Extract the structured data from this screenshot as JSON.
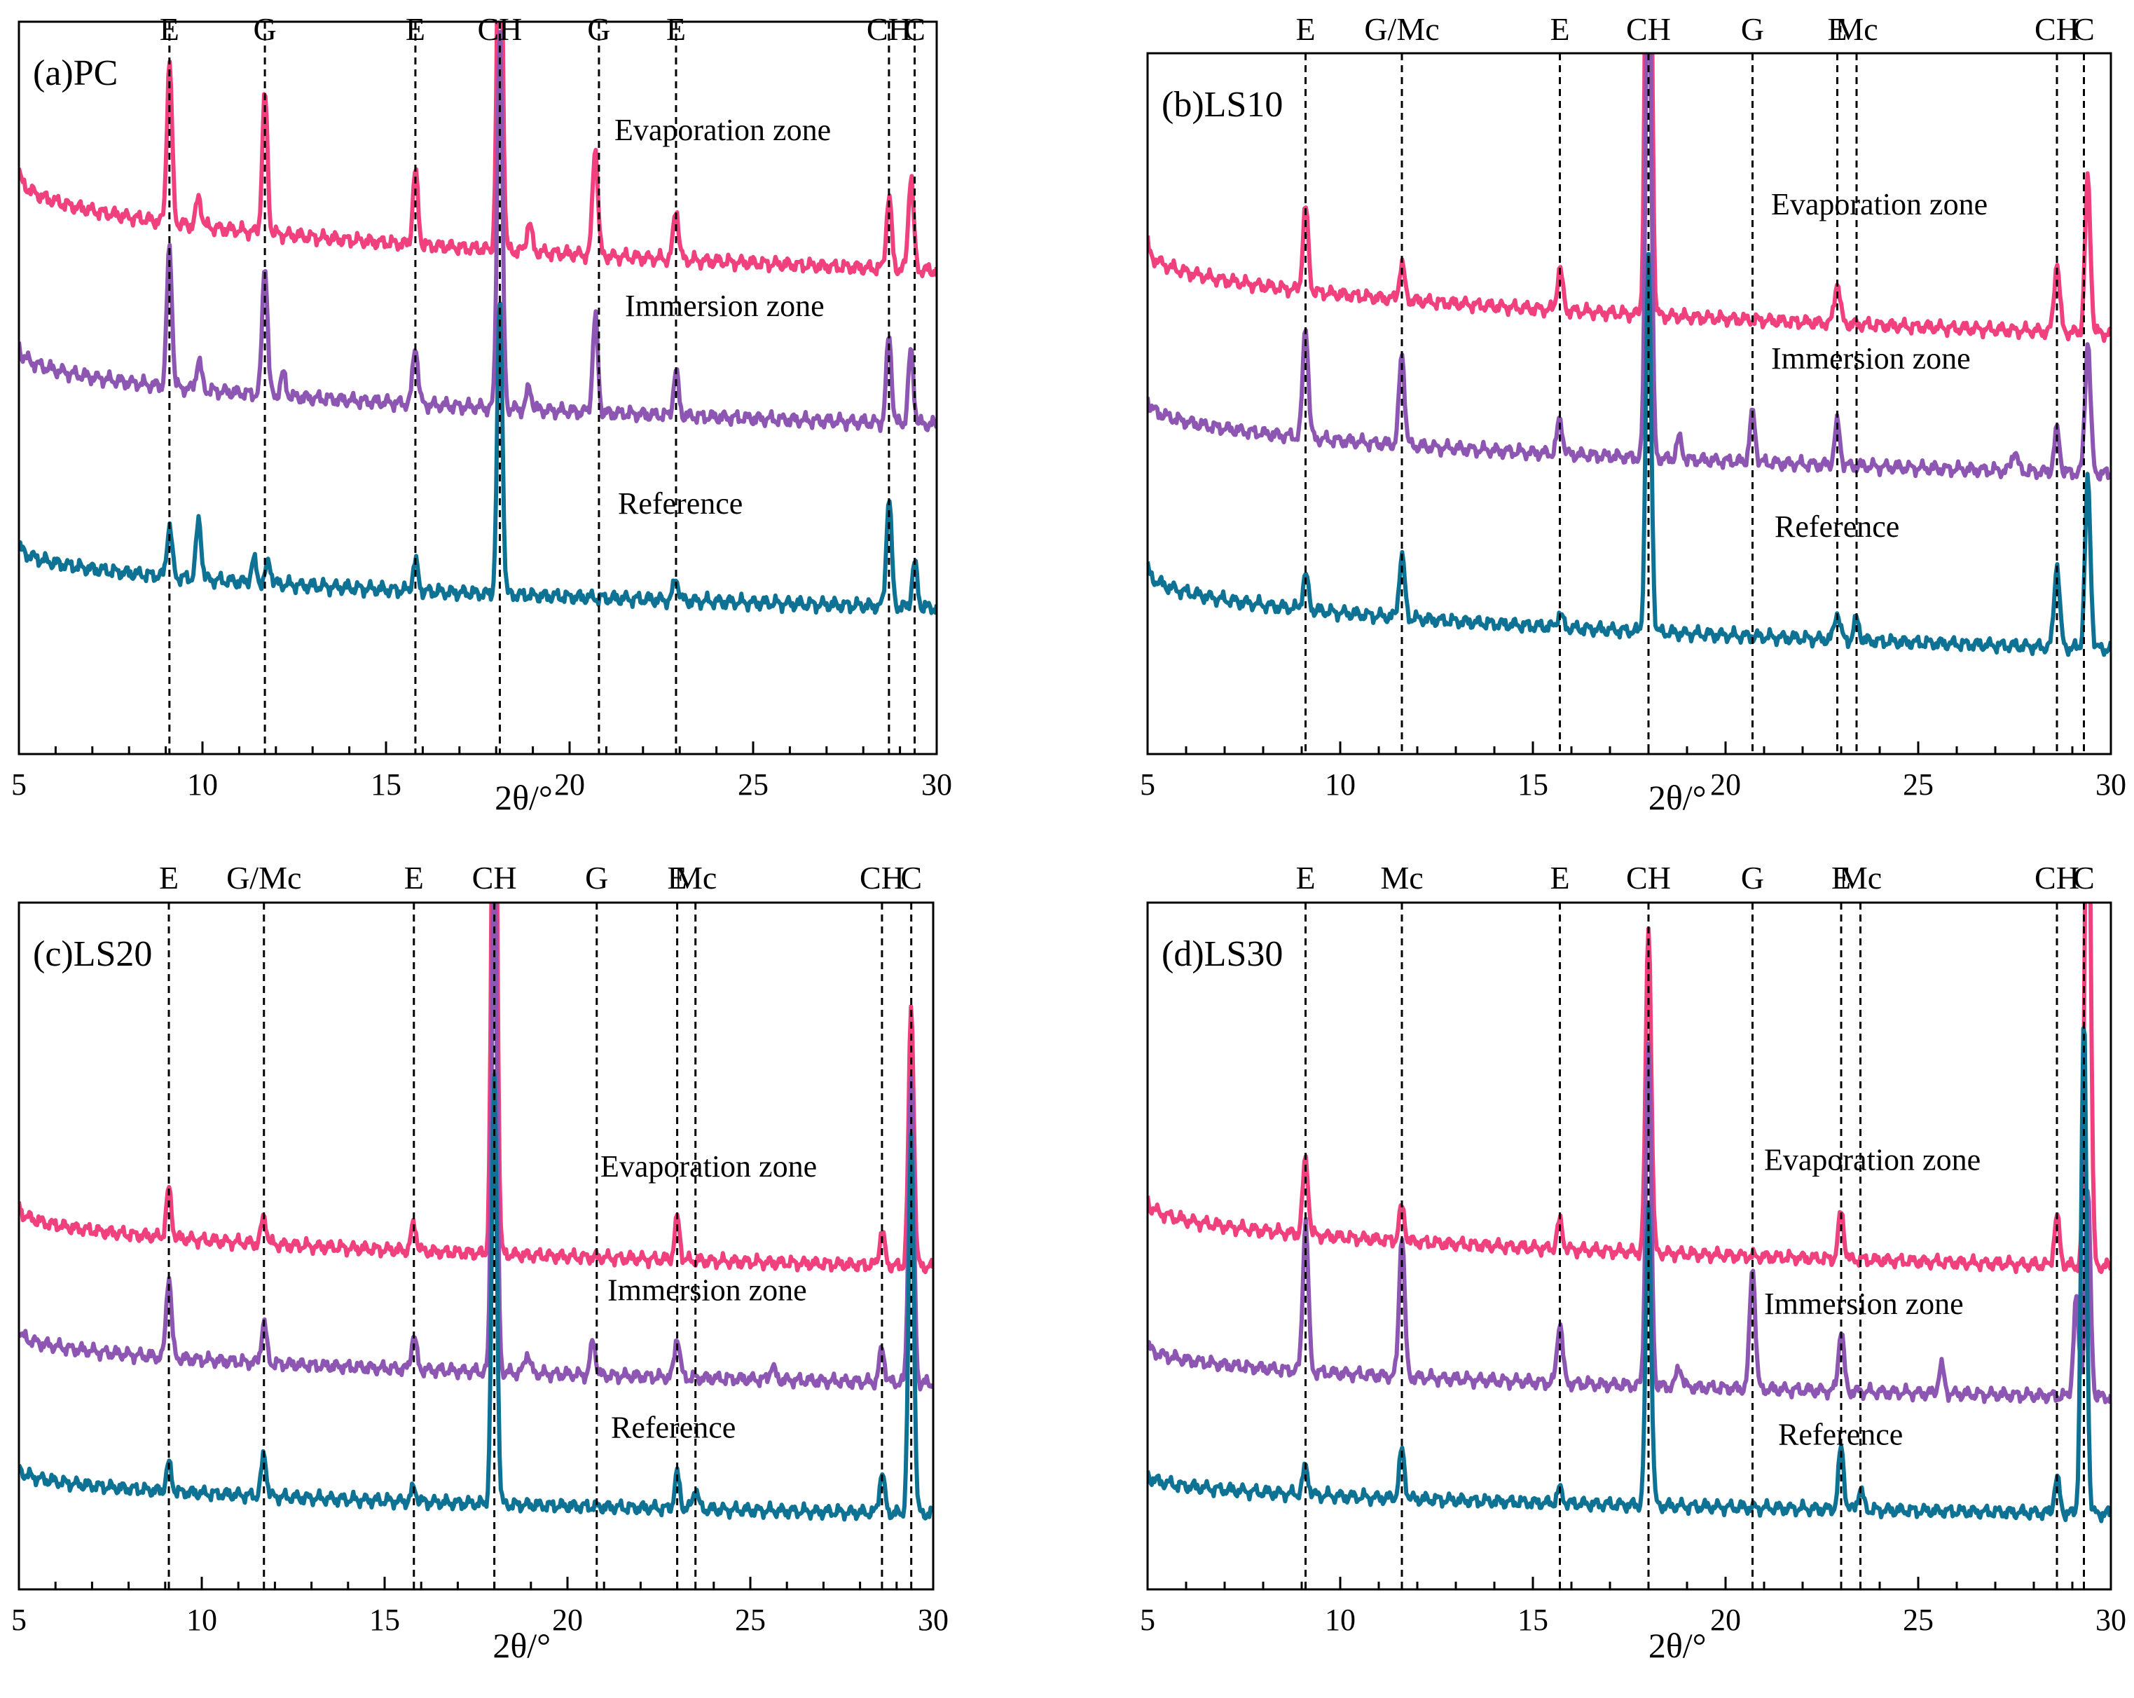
{
  "colors": {
    "Evaporation zone": "#f0417e",
    "Immersion zone": "#8e56b3",
    "Reference": "#0e7295"
  },
  "chart_data": [
    {
      "type": "line",
      "panel_label": "(a)PC",
      "xlabel": "2θ/°",
      "xlim": [
        5,
        30
      ],
      "xticks": [
        "5",
        "10",
        "15",
        "20",
        "25",
        "30"
      ],
      "y_ticks_shown": false,
      "phase_markers": [
        {
          "label": "E",
          "x": 9.1
        },
        {
          "label": "G",
          "x": 11.7
        },
        {
          "label": "E",
          "x": 15.8
        },
        {
          "label": "CH",
          "x": 18.1
        },
        {
          "label": "G",
          "x": 20.8
        },
        {
          "label": "E",
          "x": 22.9
        },
        {
          "label": "CH",
          "x": 28.7
        },
        {
          "label": "C",
          "x": 29.4
        }
      ],
      "series": [
        {
          "name": "Evaporation zone",
          "baseline": 0.8,
          "end": 0.66,
          "peaks": [
            [
              9.1,
              0.22
            ],
            [
              9.9,
              0.04
            ],
            [
              11.7,
              0.19
            ],
            [
              15.8,
              0.1
            ],
            [
              18.1,
              0.58
            ],
            [
              18.9,
              0.04
            ],
            [
              20.7,
              0.15
            ],
            [
              22.9,
              0.07
            ],
            [
              28.7,
              0.1
            ],
            [
              29.3,
              0.13
            ]
          ]
        },
        {
          "name": "Immersion zone",
          "baseline": 0.56,
          "end": 0.45,
          "peaks": [
            [
              9.1,
              0.19
            ],
            [
              9.9,
              0.04
            ],
            [
              11.7,
              0.18
            ],
            [
              12.2,
              0.03
            ],
            [
              15.8,
              0.08
            ],
            [
              18.1,
              0.52
            ],
            [
              18.9,
              0.03
            ],
            [
              20.7,
              0.13
            ],
            [
              22.9,
              0.06
            ],
            [
              28.7,
              0.12
            ],
            [
              29.3,
              0.1
            ]
          ]
        },
        {
          "name": "Reference",
          "baseline": 0.29,
          "end": 0.2,
          "peaks": [
            [
              9.1,
              0.07
            ],
            [
              9.9,
              0.08
            ],
            [
              11.4,
              0.03
            ],
            [
              11.8,
              0.03
            ],
            [
              15.8,
              0.04
            ],
            [
              18.1,
              0.4
            ],
            [
              22.9,
              0.03
            ],
            [
              28.7,
              0.15
            ],
            [
              29.4,
              0.06
            ]
          ]
        }
      ]
    },
    {
      "type": "line",
      "panel_label": "(b)LS10",
      "xlabel": "2θ/°",
      "xlim": [
        5,
        30
      ],
      "xticks": [
        "5",
        "10",
        "15",
        "20",
        "25",
        "30"
      ],
      "y_ticks_shown": false,
      "phase_markers": [
        {
          "label": "E",
          "x": 9.1
        },
        {
          "label": "G/Mc",
          "x": 11.6
        },
        {
          "label": "E",
          "x": 15.7
        },
        {
          "label": "CH",
          "x": 18.0
        },
        {
          "label": "G",
          "x": 20.7
        },
        {
          "label": "E",
          "x": 22.9
        },
        {
          "label": "Mc",
          "x": 23.4
        },
        {
          "label": "CH",
          "x": 28.6
        },
        {
          "label": "C",
          "x": 29.3
        }
      ],
      "series": [
        {
          "name": "Evaporation zone",
          "baseline": 0.73,
          "end": 0.6,
          "peaks": [
            [
              9.1,
              0.12
            ],
            [
              11.6,
              0.05
            ],
            [
              15.7,
              0.06
            ],
            [
              18.0,
              1.05
            ],
            [
              22.9,
              0.06
            ],
            [
              28.6,
              0.1
            ],
            [
              29.4,
              0.22
            ]
          ]
        },
        {
          "name": "Immersion zone",
          "baseline": 0.51,
          "end": 0.4,
          "peaks": [
            [
              9.1,
              0.16
            ],
            [
              11.6,
              0.13
            ],
            [
              15.7,
              0.05
            ],
            [
              18.0,
              0.8
            ],
            [
              18.8,
              0.03
            ],
            [
              20.7,
              0.07
            ],
            [
              22.9,
              0.06
            ],
            [
              27.5,
              0.03
            ],
            [
              28.6,
              0.06
            ],
            [
              29.4,
              0.19
            ]
          ]
        },
        {
          "name": "Reference",
          "baseline": 0.27,
          "end": 0.15,
          "peaks": [
            [
              9.1,
              0.05
            ],
            [
              11.6,
              0.09
            ],
            [
              15.7,
              0.02
            ],
            [
              18.0,
              0.53
            ],
            [
              22.9,
              0.04
            ],
            [
              23.4,
              0.03
            ],
            [
              28.6,
              0.12
            ],
            [
              29.4,
              0.24
            ]
          ]
        }
      ]
    },
    {
      "type": "line",
      "panel_label": "(c)LS20",
      "xlabel": "2θ/°",
      "xlim": [
        5,
        30
      ],
      "xticks": [
        "5",
        "10",
        "15",
        "20",
        "25",
        "30"
      ],
      "y_ticks_shown": false,
      "phase_markers": [
        {
          "label": "E",
          "x": 9.1
        },
        {
          "label": "G/Mc",
          "x": 11.7
        },
        {
          "label": "E",
          "x": 15.8
        },
        {
          "label": "CH",
          "x": 18.0
        },
        {
          "label": "G",
          "x": 20.8
        },
        {
          "label": "E",
          "x": 23.0
        },
        {
          "label": "Mc",
          "x": 23.5
        },
        {
          "label": "CH",
          "x": 28.6
        },
        {
          "label": "C",
          "x": 29.4
        }
      ],
      "series": [
        {
          "name": "Evaporation zone",
          "baseline": 0.56,
          "end": 0.47,
          "peaks": [
            [
              9.1,
              0.07
            ],
            [
              11.7,
              0.04
            ],
            [
              15.8,
              0.04
            ],
            [
              18.0,
              1.0
            ],
            [
              23.0,
              0.06
            ],
            [
              28.6,
              0.05
            ],
            [
              29.4,
              0.38
            ]
          ]
        },
        {
          "name": "Immersion zone",
          "baseline": 0.38,
          "end": 0.3,
          "peaks": [
            [
              9.1,
              0.12
            ],
            [
              11.7,
              0.06
            ],
            [
              15.8,
              0.05
            ],
            [
              18.0,
              0.75
            ],
            [
              18.9,
              0.03
            ],
            [
              20.7,
              0.05
            ],
            [
              23.0,
              0.06
            ],
            [
              25.6,
              0.02
            ],
            [
              28.6,
              0.05
            ],
            [
              29.4,
              0.45
            ]
          ]
        },
        {
          "name": "Reference",
          "baseline": 0.18,
          "end": 0.11,
          "peaks": [
            [
              9.1,
              0.04
            ],
            [
              11.7,
              0.06
            ],
            [
              15.8,
              0.02
            ],
            [
              18.0,
              0.62
            ],
            [
              23.0,
              0.05
            ],
            [
              23.5,
              0.03
            ],
            [
              28.6,
              0.06
            ],
            [
              29.4,
              0.55
            ]
          ]
        }
      ]
    },
    {
      "type": "line",
      "panel_label": "(d)LS30",
      "xlabel": "2θ/°",
      "xlim": [
        5,
        30
      ],
      "xticks": [
        "5",
        "10",
        "15",
        "20",
        "25",
        "30"
      ],
      "y_ticks_shown": false,
      "phase_markers": [
        {
          "label": "E",
          "x": 9.1
        },
        {
          "label": "Mc",
          "x": 11.6
        },
        {
          "label": "E",
          "x": 15.7
        },
        {
          "label": "CH",
          "x": 18.0
        },
        {
          "label": "G",
          "x": 20.7
        },
        {
          "label": "E",
          "x": 23.0
        },
        {
          "label": "Mc",
          "x": 23.5
        },
        {
          "label": "CH",
          "x": 28.6
        },
        {
          "label": "C",
          "x": 29.3
        }
      ],
      "series": [
        {
          "name": "Evaporation zone",
          "baseline": 0.57,
          "end": 0.47,
          "peaks": [
            [
              9.1,
              0.11
            ],
            [
              11.6,
              0.05
            ],
            [
              15.7,
              0.04
            ],
            [
              18.0,
              0.48
            ],
            [
              23.0,
              0.07
            ],
            [
              28.6,
              0.07
            ],
            [
              29.4,
              0.9
            ]
          ]
        },
        {
          "name": "Immersion zone",
          "baseline": 0.36,
          "end": 0.28,
          "peaks": [
            [
              9.1,
              0.22
            ],
            [
              11.6,
              0.21
            ],
            [
              15.7,
              0.09
            ],
            [
              18.0,
              0.5
            ],
            [
              18.8,
              0.03
            ],
            [
              20.7,
              0.18
            ],
            [
              23.0,
              0.09
            ],
            [
              25.6,
              0.04
            ],
            [
              29.1,
              0.14
            ],
            [
              29.4,
              0.3
            ]
          ]
        },
        {
          "name": "Reference",
          "baseline": 0.17,
          "end": 0.11,
          "peaks": [
            [
              9.1,
              0.04
            ],
            [
              11.6,
              0.07
            ],
            [
              15.7,
              0.02
            ],
            [
              18.0,
              0.44
            ],
            [
              23.0,
              0.09
            ],
            [
              23.5,
              0.03
            ],
            [
              28.6,
              0.05
            ],
            [
              29.3,
              0.72
            ]
          ]
        }
      ]
    }
  ]
}
